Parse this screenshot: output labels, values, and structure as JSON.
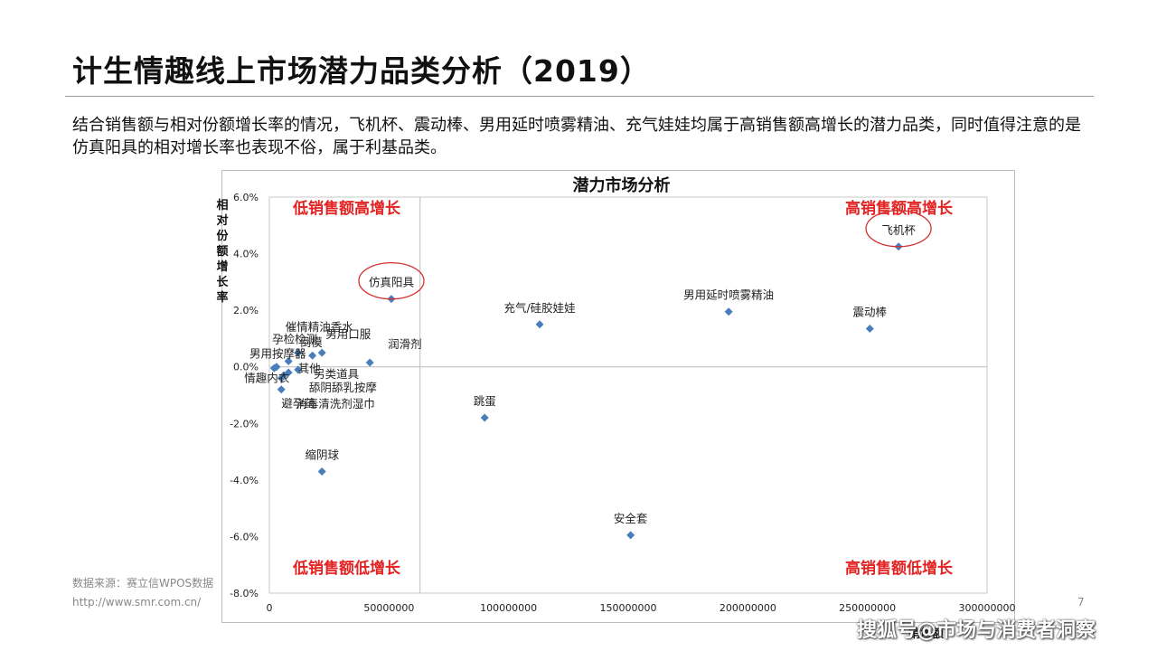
{
  "slide": {
    "title": "计生情趣线上市场潜力品类分析（2019）",
    "description": "结合销售额与相对份额增长率的情况，飞机杯、震动棒、男用延时喷雾精油、充气娃娃均属于高销售额高增长的潜力品类，同时值得注意的是仿真阳具的相对增长率也表现不俗，属于利基品类。",
    "source_line1": "数据来源：赛立信WPOS数据",
    "source_line2": "http://www.smr.com.cn/",
    "page_number": "7",
    "watermark": "搜狐号@市场与消费者洞察"
  },
  "chart_data": {
    "type": "scatter",
    "title": "潜力市场分析",
    "ylabel": "相对份额增长率",
    "xlabel": "销售额",
    "xlim": [
      0,
      300000000
    ],
    "ylim": [
      -0.08,
      0.06
    ],
    "xticks": [
      0,
      50000000,
      100000000,
      150000000,
      200000000,
      250000000,
      300000000
    ],
    "xtick_labels": [
      "0",
      "50000000",
      "100000000",
      "150000000",
      "200000000",
      "250000000",
      "300000000"
    ],
    "yticks": [
      0.06,
      0.04,
      0.02,
      0,
      -0.02,
      -0.04,
      -0.06,
      -0.08
    ],
    "ytick_labels": [
      "6.0%",
      "4.0%",
      "2.0%",
      "0.0%",
      "-2.0%",
      "-4.0%",
      "-6.0%",
      "-8.0%"
    ],
    "divider_x": 63000000,
    "divider_y": 0,
    "marker_color": "#4a7ebb",
    "quadrant_color": "#e32222",
    "highlight_color": "#d23030",
    "quadrants": {
      "top_left": "低销售额高增长",
      "top_right": "高销售额高增长",
      "bottom_left": "低销售额低增长",
      "bottom_right": "高销售额低增长"
    },
    "points": [
      {
        "name": "飞机杯",
        "x": 263000000,
        "y": 0.0425,
        "highlight": true
      },
      {
        "name": "震动棒",
        "x": 251000000,
        "y": 0.0135
      },
      {
        "name": "男用延时喷雾精油",
        "x": 192000000,
        "y": 0.0195
      },
      {
        "name": "充气/硅胶娃娃",
        "x": 113000000,
        "y": 0.015
      },
      {
        "name": "仿真阳具",
        "x": 51000000,
        "y": 0.024,
        "highlight": true
      },
      {
        "name": "润滑剂",
        "x": 42000000,
        "y": 0.0015
      },
      {
        "name": "跳蛋",
        "x": 90000000,
        "y": -0.018
      },
      {
        "name": "安全套",
        "x": 151000000,
        "y": -0.0595
      },
      {
        "name": "缩阴球",
        "x": 22000000,
        "y": -0.037
      },
      {
        "name": "避孕药",
        "x": 5000000,
        "y": -0.008
      },
      {
        "name": "男用口服",
        "x": 22000000,
        "y": 0.005
      },
      {
        "name": "倒模",
        "x": 18000000,
        "y": 0.004
      },
      {
        "name": "催情精油香水",
        "x": 12000000,
        "y": 0.005
      },
      {
        "name": "孕检检测",
        "x": 8000000,
        "y": 0.002
      },
      {
        "name": "男用按摩器",
        "x": 3000000,
        "y": 0.0
      },
      {
        "name": "其他",
        "x": 12000000,
        "y": -0.001
      },
      {
        "name": "另类道具",
        "x": 8000000,
        "y": -0.002
      },
      {
        "name": "舔阴舔乳按摩",
        "x": 6000000,
        "y": -0.003
      },
      {
        "name": "消毒清洗剂湿巾",
        "x": 5000000,
        "y": -0.004
      },
      {
        "name": "情趣内衣",
        "x": 2000000,
        "y": -0.0005
      }
    ]
  }
}
